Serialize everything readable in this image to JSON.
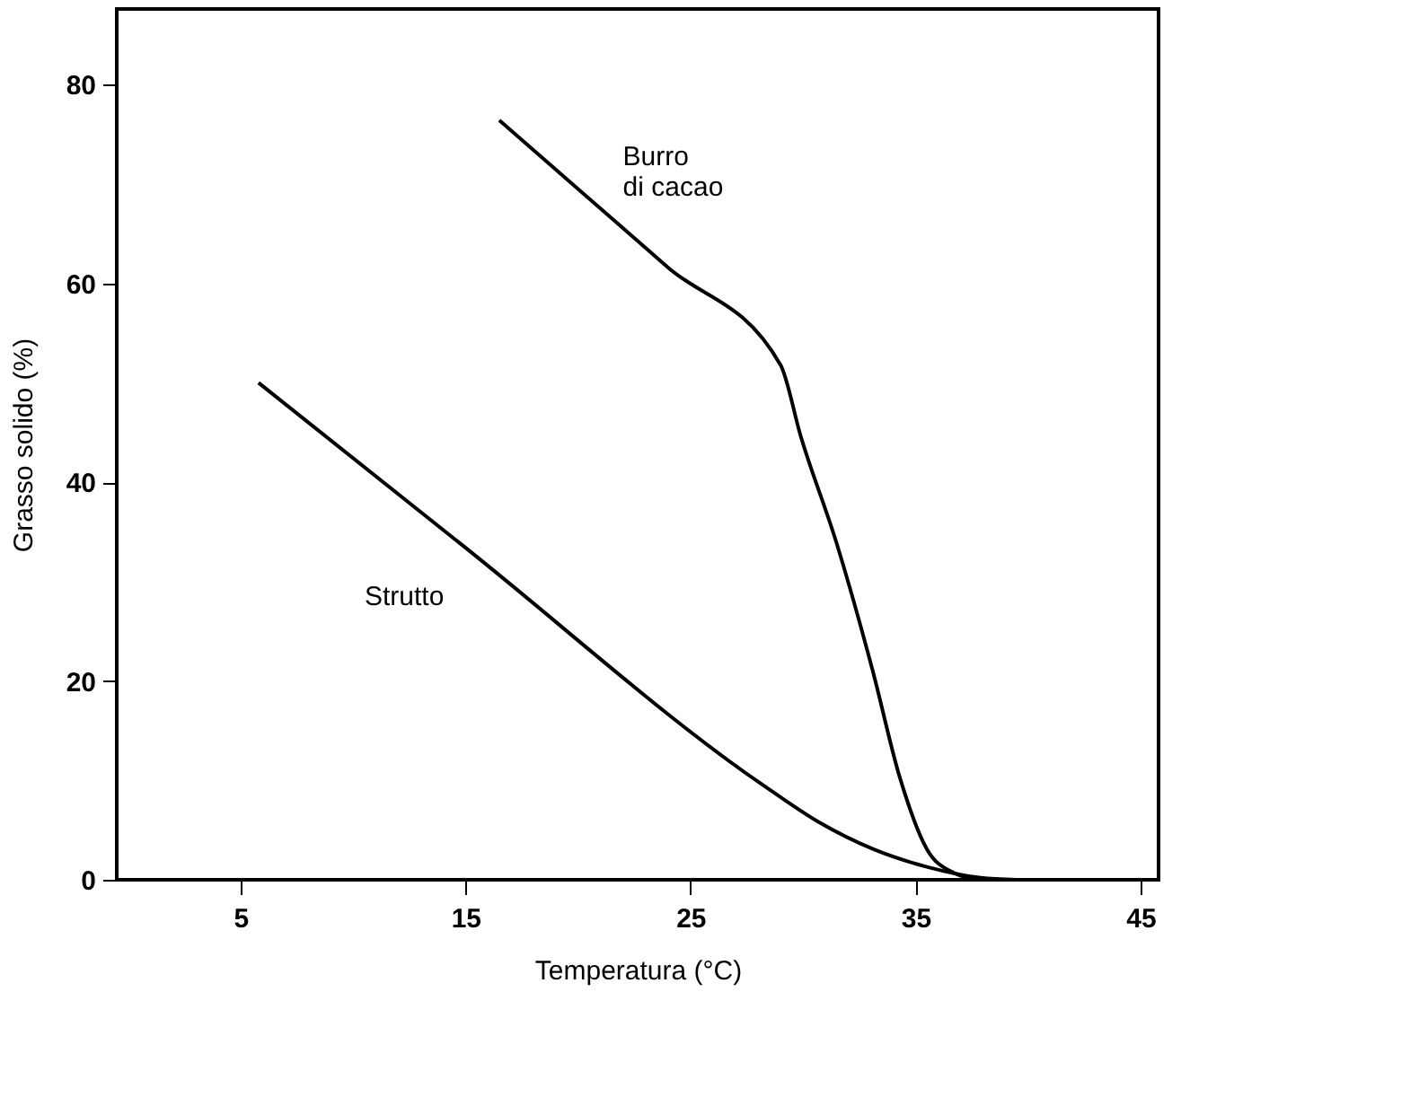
{
  "chart_data": {
    "type": "line",
    "xlabel": "Temperatura (°C)",
    "ylabel": "Grasso solido (%)",
    "xlim": [
      -0.5,
      45.8
    ],
    "ylim": [
      0,
      87.6
    ],
    "xticks": [
      5,
      15,
      25,
      35,
      45
    ],
    "yticks": [
      0,
      20,
      40,
      60,
      80
    ],
    "grid": false,
    "legend": false,
    "marker": "none",
    "line_style": "solid",
    "series": [
      {
        "name": "Burro\ndi cacao",
        "color": "#000000",
        "x": [
          16.5,
          20,
          24,
          29,
          29.9,
          31.5,
          33.1,
          34.3,
          35.5,
          36.7,
          37.9,
          41
        ],
        "values": [
          76.4,
          69.5,
          61.6,
          51.8,
          44.6,
          33.8,
          21,
          10.3,
          3.1,
          0.7,
          0,
          0
        ]
      },
      {
        "name": "Strutto",
        "color": "#000000",
        "x": [
          5.8,
          15,
          28.3,
          30.7,
          33.1,
          35.5,
          37.9,
          39.5
        ],
        "values": [
          50,
          33.4,
          9.4,
          5.8,
          3.1,
          1.3,
          0.2,
          0
        ]
      }
    ]
  }
}
